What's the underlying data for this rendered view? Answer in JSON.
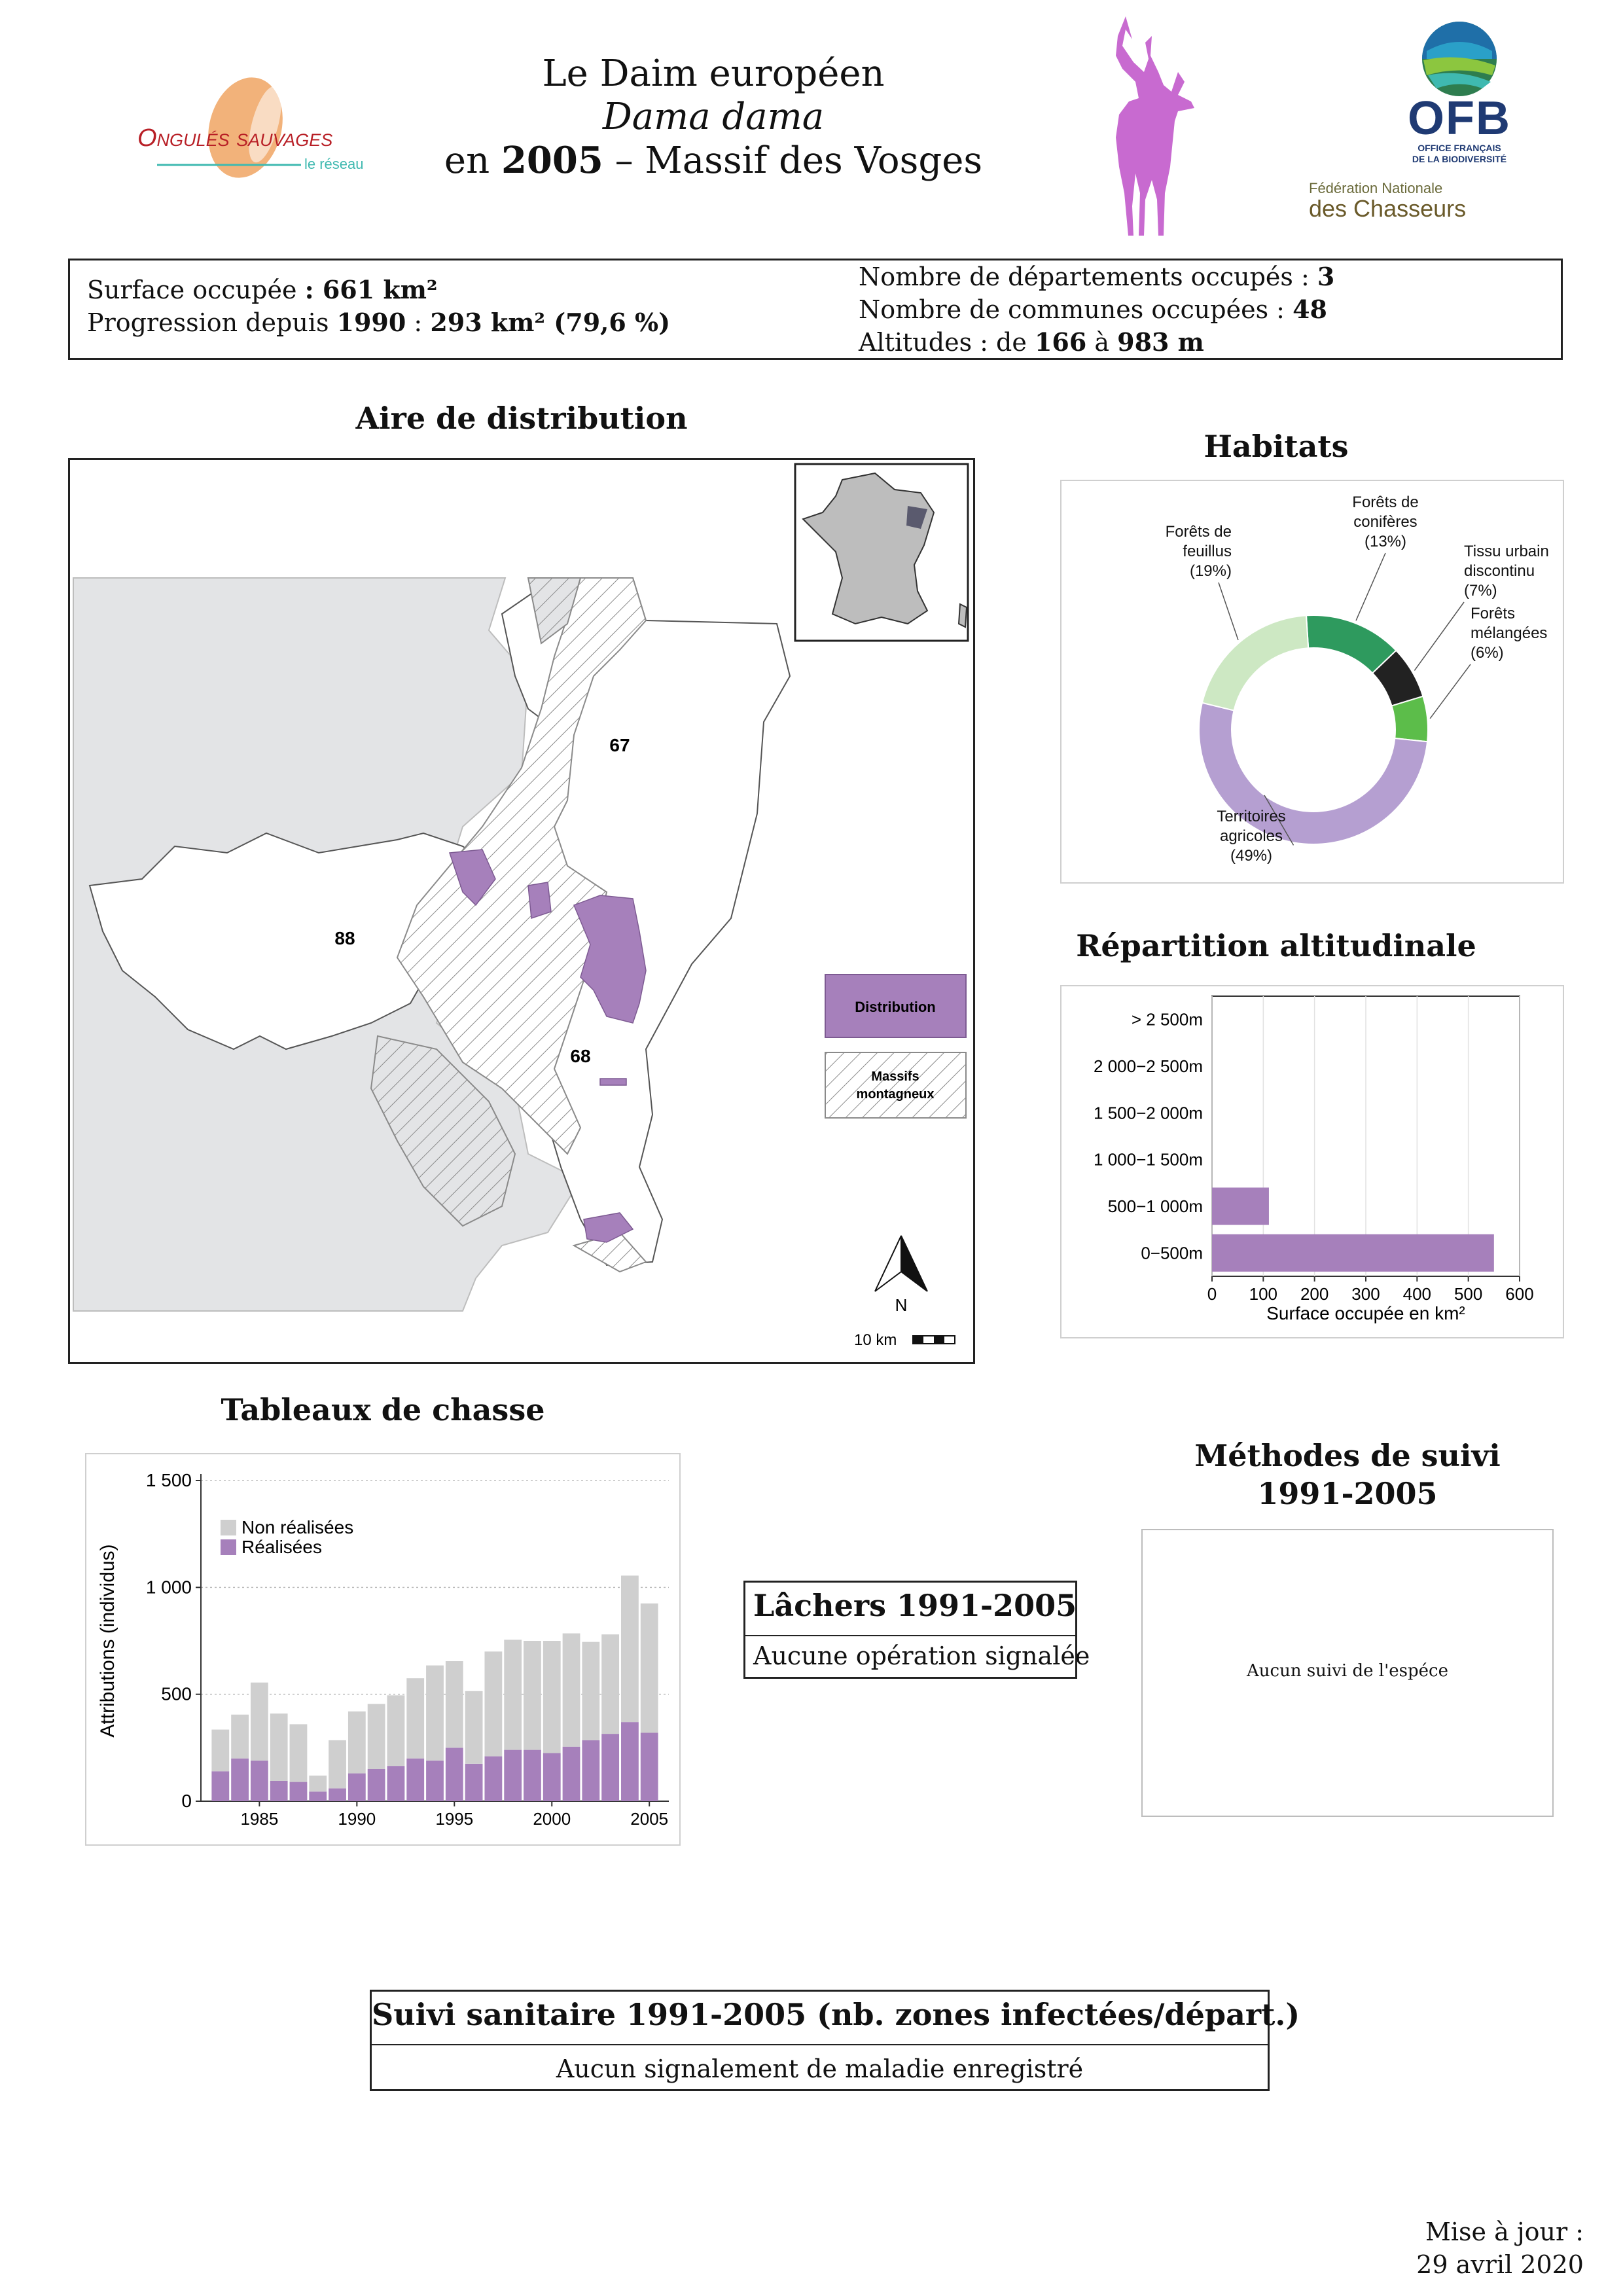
{
  "header": {
    "title_line1": "Le Daim européen",
    "title_line2": "Dama dama",
    "title_line3_prefix": "en",
    "title_year": "2005",
    "title_line3_suffix": "– Massif des Vosges",
    "logo_left_main": "Ongulés sauvages",
    "logo_left_sub": "le réseau",
    "logo_ofb": "OFB",
    "logo_ofb_sub1": "OFFICE FRANÇAIS",
    "logo_ofb_sub2": "DE LA BIODIVERSITÉ",
    "logo_fnc_1": "Fédération Nationale",
    "logo_fnc_2": "des Chasseurs"
  },
  "summary": {
    "surface_label": "Surface occupée",
    "surface_value": ": 661 km²",
    "progress_label": "Progression depuis",
    "progress_year": "1990",
    "progress_sep": ":",
    "progress_value": "293 km² (79,6 %)",
    "dept_label": "Nombre de départements occupés :",
    "dept_value": "3",
    "communes_label": "Nombre de communes occupées :",
    "communes_value": "48",
    "alt_label": "Altitudes : de",
    "alt_min": "166",
    "alt_sep": "à",
    "alt_max": "983 m"
  },
  "map": {
    "title": "Aire de distribution",
    "dept_labels": [
      "67",
      "88",
      "68"
    ],
    "legend_distribution": "Distribution",
    "legend_massifs_1": "Massifs",
    "legend_massifs_2": "montagneux",
    "north": "N",
    "scale": "10 km",
    "colors": {
      "distribution": "#a680bb",
      "outside": "#e3e4e6",
      "inset_region": "#5a5a6e"
    }
  },
  "habitats": {
    "title": "Habitats",
    "chart_data": {
      "type": "pie",
      "labels": [
        "Forêts de conifères",
        "Tissu urbain discontinu",
        "Forêts mélangées",
        "Territoires agricoles",
        "Forêts de feuillus"
      ],
      "values": [
        13,
        7,
        6,
        49,
        19
      ],
      "label_lines": [
        [
          "Forêts de",
          "conifères",
          "(13%)"
        ],
        [
          "Tissu urbain",
          "discontinu",
          "(7%)"
        ],
        [
          "Forêts",
          "mélangées",
          "(6%)"
        ],
        [
          "Territoires",
          "agricoles",
          "(49%)"
        ],
        [
          "Forêts de",
          "feuillus",
          "(19%)"
        ]
      ],
      "colors": [
        "#2e9a5e",
        "#222222",
        "#5cbd4a",
        "#b59fd1",
        "#cde8c3"
      ]
    }
  },
  "altitude": {
    "title": "Répartition altitudinale",
    "chart_data": {
      "type": "bar",
      "orientation": "horizontal",
      "categories": [
        "0−500m",
        "500−1 000m",
        "1 000−1 500m",
        "1 500−2 000m",
        "2 000−2 500m",
        "> 2 500m"
      ],
      "values": [
        550,
        111,
        0,
        0,
        0,
        0
      ],
      "xlabel": "Surface occupée en km²",
      "xlim": [
        0,
        600
      ],
      "xticks": [
        0,
        100,
        200,
        300,
        400,
        500,
        600
      ],
      "color": "#a680bb"
    }
  },
  "hunting": {
    "title": "Tableaux de chasse",
    "chart_data": {
      "type": "bar",
      "stacked": true,
      "x": [
        1983,
        1984,
        1985,
        1986,
        1987,
        1988,
        1989,
        1990,
        1991,
        1992,
        1993,
        1994,
        1995,
        1996,
        1997,
        1998,
        1999,
        2000,
        2001,
        2002,
        2003,
        2004,
        2005
      ],
      "series": [
        {
          "name": "Réalisées",
          "color": "#a680bb",
          "values": [
            140,
            200,
            190,
            95,
            90,
            45,
            60,
            130,
            150,
            165,
            200,
            190,
            250,
            175,
            210,
            240,
            240,
            225,
            255,
            285,
            315,
            370,
            320
          ]
        },
        {
          "name": "Non réalisées",
          "color": "#cfcfcf",
          "values": [
            195,
            205,
            365,
            315,
            270,
            75,
            225,
            290,
            305,
            330,
            375,
            445,
            405,
            340,
            490,
            515,
            510,
            525,
            530,
            460,
            465,
            685,
            605
          ]
        }
      ],
      "ylabel": "Attributions (individus)",
      "ylim": [
        0,
        1500
      ],
      "yticks": [
        0,
        500,
        1000,
        1500
      ],
      "ytick_labels": [
        "0",
        "500",
        "1 000",
        "1 500"
      ],
      "xticks": [
        1985,
        1990,
        1995,
        2000,
        2005
      ],
      "legend": "top-left",
      "grid": true
    }
  },
  "lachers": {
    "title": "Lâchers 1991-2005",
    "text": "Aucune opération signalée"
  },
  "methodes": {
    "title_line1": "Méthodes de suivi",
    "title_line2": "1991-2005",
    "text": "Aucun suivi de l'espéce"
  },
  "sanitaire": {
    "title": "Suivi sanitaire 1991-2005 (nb. zones infectées/départ.)",
    "text": "Aucun signalement de maladie enregistré"
  },
  "footer": {
    "update_line1": "Mise à jour :",
    "update_line2": "29 avril 2020"
  }
}
